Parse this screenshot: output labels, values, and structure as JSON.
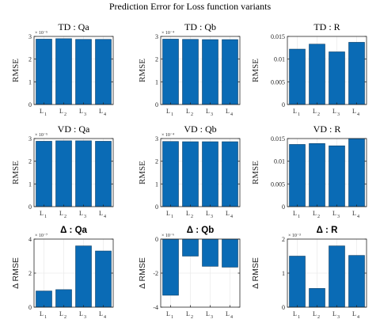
{
  "figure_title": "Prediction Error for Loss function variants",
  "chart_data": [
    {
      "type": "bar",
      "title": "TD : Qa",
      "ylabel": "RMSE",
      "categories": [
        "L1",
        "L2",
        "L3",
        "L4"
      ],
      "values": [
        2.88e-05,
        2.9e-05,
        2.87e-05,
        2.87e-05
      ],
      "ylim": [
        0,
        3e-05
      ],
      "yticks": [
        0,
        1e-05,
        2e-05,
        3e-05
      ],
      "ytick_labels": [
        "0",
        "1",
        "2",
        "3"
      ],
      "exponent": "× 10⁻⁵",
      "grid": true
    },
    {
      "type": "bar",
      "title": "TD : Qb",
      "ylabel": "RMSE",
      "categories": [
        "L1",
        "L2",
        "L3",
        "L4"
      ],
      "values": [
        0.000288,
        0.000287,
        0.000286,
        0.000286
      ],
      "ylim": [
        0,
        0.0003
      ],
      "yticks": [
        0,
        0.0001,
        0.0002,
        0.0003
      ],
      "ytick_labels": [
        "0",
        "1",
        "2",
        "3"
      ],
      "exponent": "× 10⁻⁴",
      "grid": true
    },
    {
      "type": "bar",
      "title": "TD : R",
      "ylabel": "RMSE",
      "categories": [
        "L1",
        "L2",
        "L3",
        "L4"
      ],
      "values": [
        0.0122,
        0.0133,
        0.0116,
        0.0137
      ],
      "ylim": [
        0,
        0.015
      ],
      "yticks": [
        0,
        0.005,
        0.01,
        0.015
      ],
      "ytick_labels": [
        "0",
        "0.005",
        "0.01",
        "0.015"
      ],
      "exponent": "",
      "grid": true
    },
    {
      "type": "bar",
      "title": "VD : Qa",
      "ylabel": "RMSE",
      "categories": [
        "L1",
        "L2",
        "L3",
        "L4"
      ],
      "values": [
        2.88e-05,
        2.9e-05,
        2.9e-05,
        2.88e-05
      ],
      "ylim": [
        0,
        3e-05
      ],
      "yticks": [
        0,
        1e-05,
        2e-05,
        3e-05
      ],
      "ytick_labels": [
        "0",
        "1",
        "2",
        "3"
      ],
      "exponent": "× 10⁻⁵",
      "grid": true
    },
    {
      "type": "bar",
      "title": "VD : Qb",
      "ylabel": "RMSE",
      "categories": [
        "L1",
        "L2",
        "L3",
        "L4"
      ],
      "values": [
        0.000287,
        0.000286,
        0.000286,
        0.000286
      ],
      "ylim": [
        0,
        0.0003
      ],
      "yticks": [
        0,
        0.0001,
        0.0002,
        0.0003
      ],
      "ytick_labels": [
        "0",
        "1",
        "2",
        "3"
      ],
      "exponent": "× 10⁻⁴",
      "grid": true
    },
    {
      "type": "bar",
      "title": "VD : R",
      "ylabel": "RMSE",
      "categories": [
        "L1",
        "L2",
        "L3",
        "L4"
      ],
      "values": [
        0.0137,
        0.0139,
        0.0134,
        0.0151
      ],
      "ylim": [
        0,
        0.015
      ],
      "yticks": [
        0,
        0.005,
        0.01,
        0.015
      ],
      "ytick_labels": [
        "0",
        "0.005",
        "0.01",
        "0.015"
      ],
      "exponent": "",
      "grid": true
    },
    {
      "type": "bar",
      "title": "Δ : Qa",
      "ylabel": "Δ RMSE",
      "categories": [
        "L1",
        "L2",
        "L3",
        "L4"
      ],
      "values": [
        9.5e-08,
        1.03e-07,
        3.6e-07,
        3.3e-07
      ],
      "ylim": [
        0,
        4e-07
      ],
      "yticks": [
        0,
        2e-07,
        4e-07
      ],
      "ytick_labels": [
        "0",
        "2",
        "4"
      ],
      "exponent": "× 10⁻⁷",
      "grid": true
    },
    {
      "type": "bar",
      "title": "Δ : Qb",
      "ylabel": "Δ RMSE",
      "categories": [
        "L1",
        "L2",
        "L3",
        "L4"
      ],
      "values": [
        -3.3e-06,
        -1e-06,
        -1.6e-06,
        -1.65e-06
      ],
      "ylim": [
        -4e-06,
        0
      ],
      "yticks": [
        -4e-06,
        -2e-06,
        0
      ],
      "ytick_labels": [
        "-4",
        "-2",
        "0"
      ],
      "exponent": "× 10⁻⁶",
      "grid": true
    },
    {
      "type": "bar",
      "title": "Δ : R",
      "ylabel": "Δ RMSE",
      "categories": [
        "L1",
        "L2",
        "L3",
        "L4"
      ],
      "values": [
        0.0015,
        0.00055,
        0.0018,
        0.00152
      ],
      "ylim": [
        0,
        0.002
      ],
      "yticks": [
        0,
        0.001,
        0.002
      ],
      "ytick_labels": [
        "0",
        "1",
        "2"
      ],
      "exponent": "× 10⁻³",
      "grid": true
    }
  ]
}
